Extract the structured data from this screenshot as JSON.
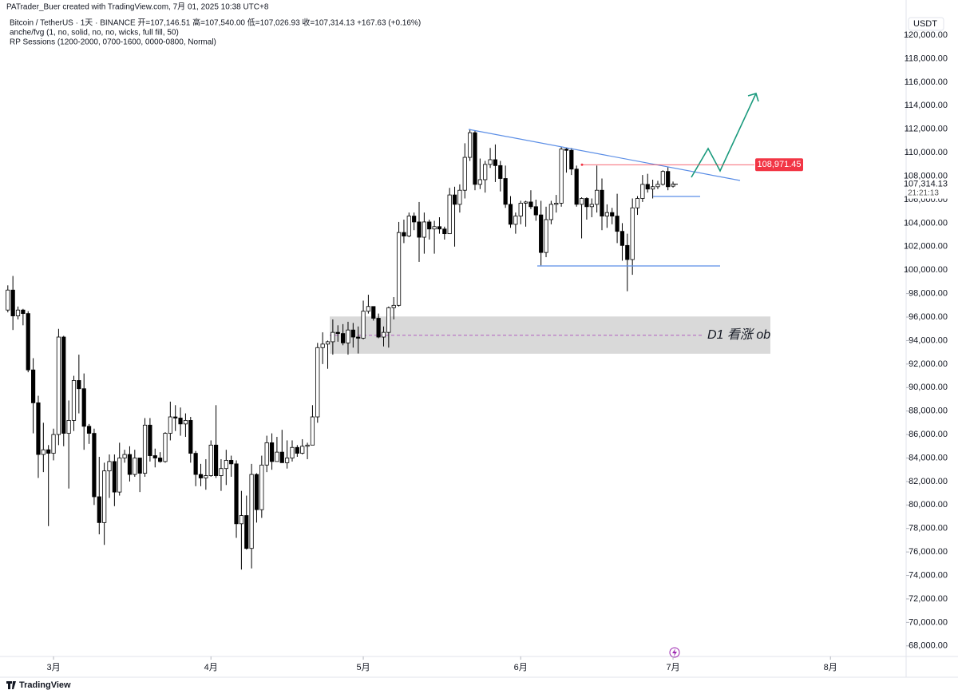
{
  "chart_data": {
    "type": "candlestick",
    "credit": "PATrader_Buer created with TradingView.com, 7月 01, 2025 10:38 UTC+8",
    "legend_lines": [
      "Bitcoin / TetherUS · 1天 · BINANCE  开=107,146.51  高=107,540.00  低=107,026.93  收=107,314.13  +167.63 (+0.16%)",
      "anche/fvg (1, no, solid, no, no, wicks, full fill, 50)",
      "RP Sessions (1200-2000, 0700-1600, 0000-0800, Normal)"
    ],
    "currency": "USDT",
    "brand": "TradingView",
    "open": [
      96600,
      98300,
      96100,
      96600,
      96300,
      91500,
      88700,
      84300,
      84700,
      84400,
      86000,
      94300,
      86100,
      87200,
      90600,
      89900,
      86700,
      86100,
      80700,
      78500,
      82900,
      83700,
      81100,
      84000,
      84300,
      82600,
      84000,
      82700,
      86800,
      84200,
      84000,
      83700,
      86100,
      87500,
      87400,
      86900,
      87200,
      84400,
      82600,
      82300,
      82500,
      85100,
      82500,
      83100,
      83800,
      83500,
      78400,
      79100,
      76300,
      82600,
      79600,
      83400,
      85300,
      83700,
      84500,
      83600,
      84000,
      84900,
      84400,
      85000,
      85100,
      87500,
      93400,
      93700,
      93900,
      94700,
      94600,
      93800,
      94900,
      94300,
      94200,
      96500,
      96900,
      95900,
      94300,
      94700,
      96800,
      97000,
      103200,
      102900,
      104600,
      104100,
      102800,
      104100,
      103500,
      103700,
      103500,
      103100,
      106400,
      105600,
      106800,
      109600,
      111700,
      107300,
      107700,
      109000,
      109400,
      108900,
      107800,
      105600,
      103900,
      104600,
      105700,
      105800,
      105400,
      104700,
      101500,
      104300,
      105600,
      105700,
      110300,
      110200,
      108600,
      105600,
      106100,
      105400,
      105600,
      106800,
      104600,
      104900,
      104600,
      103300,
      102100,
      100900,
      105300,
      106100,
      107300,
      106900,
      107100,
      107300,
      108400,
      107146.51
    ],
    "high": [
      98700,
      99500,
      96900,
      96700,
      96500,
      92500,
      89300,
      87000,
      85100,
      86500,
      95000,
      94400,
      88900,
      91000,
      92800,
      91200,
      86900,
      86500,
      84100,
      83600,
      84300,
      84300,
      85300,
      84700,
      85000,
      84700,
      84000,
      87400,
      87400,
      84800,
      84500,
      86200,
      88800,
      88500,
      88300,
      87800,
      87500,
      84600,
      83500,
      83900,
      85500,
      88500,
      83900,
      84700,
      84200,
      83800,
      81200,
      80800,
      83500,
      82700,
      84200,
      85900,
      86100,
      85800,
      86400,
      85500,
      85500,
      85100,
      85600,
      85300,
      88500,
      93800,
      94700,
      94000,
      95800,
      95300,
      95400,
      95600,
      95500,
      95200,
      97400,
      97900,
      96900,
      96300,
      95200,
      96900,
      97700,
      104100,
      104300,
      104900,
      104900,
      105800,
      104900,
      104300,
      104200,
      104500,
      103700,
      107000,
      107100,
      107300,
      110800,
      112000,
      111900,
      109500,
      109300,
      110400,
      110700,
      109300,
      108900,
      106300,
      104900,
      105900,
      105900,
      106800,
      106000,
      105900,
      105400,
      105900,
      106400,
      110500,
      110400,
      110400,
      108900,
      106200,
      106200,
      106100,
      108900,
      107800,
      105600,
      105300,
      106500,
      104000,
      103100,
      106100,
      106300,
      108100,
      108200,
      107700,
      107600,
      108500,
      108800,
      107540
    ],
    "low": [
      96400,
      94900,
      95800,
      95300,
      91300,
      86100,
      82300,
      82800,
      78200,
      83800,
      85100,
      85000,
      81400,
      86300,
      87800,
      84700,
      85200,
      80000,
      77500,
      76600,
      80600,
      79900,
      80800,
      83600,
      82000,
      82400,
      81100,
      82400,
      83700,
      83200,
      83600,
      83600,
      85500,
      86300,
      85900,
      85800,
      83600,
      81600,
      81600,
      81300,
      82400,
      82300,
      81200,
      81700,
      82400,
      77200,
      74500,
      76200,
      74600,
      78500,
      78900,
      82800,
      83000,
      83700,
      83600,
      83100,
      83700,
      84100,
      84300,
      83900,
      85100,
      87000,
      92000,
      91600,
      92800,
      93900,
      93600,
      92800,
      93400,
      92900,
      94100,
      96300,
      95700,
      94200,
      93500,
      93400,
      95800,
      96900,
      102300,
      102800,
      103400,
      100700,
      101400,
      102600,
      101400,
      103100,
      102600,
      103100,
      102000,
      104900,
      106100,
      109300,
      106800,
      106900,
      106600,
      108700,
      107500,
      106700,
      105300,
      103600,
      103100,
      103900,
      103700,
      105200,
      104200,
      100400,
      101100,
      103900,
      104900,
      105400,
      108300,
      108100,
      105400,
      102700,
      104300,
      104500,
      104900,
      103400,
      103600,
      103900,
      102300,
      100800,
      98200,
      99600,
      104700,
      105800,
      106600,
      106100,
      106900,
      107200,
      106800,
      107026.93
    ],
    "close": [
      98300,
      96100,
      96600,
      96300,
      91500,
      88700,
      84300,
      84700,
      84400,
      86000,
      94300,
      86100,
      87200,
      90600,
      89900,
      86700,
      86100,
      80700,
      78500,
      82900,
      83700,
      81100,
      84000,
      84300,
      82600,
      84000,
      82700,
      86800,
      84200,
      84000,
      83700,
      86100,
      87500,
      87400,
      86900,
      87200,
      84400,
      82600,
      82300,
      82500,
      85100,
      82500,
      83100,
      83800,
      83500,
      78400,
      79100,
      76300,
      82600,
      79600,
      83400,
      85300,
      83700,
      84500,
      83600,
      84000,
      84900,
      84400,
      85000,
      85100,
      87500,
      93400,
      93700,
      93900,
      94700,
      94600,
      93800,
      94900,
      94300,
      94200,
      96500,
      96900,
      95900,
      94300,
      94700,
      96800,
      97000,
      103200,
      102900,
      104600,
      104100,
      102800,
      104100,
      103500,
      103700,
      103500,
      103100,
      106400,
      105600,
      106800,
      109600,
      111700,
      107300,
      107700,
      109000,
      109400,
      108900,
      107800,
      105600,
      103900,
      104600,
      105700,
      105800,
      105400,
      104700,
      101500,
      104300,
      105600,
      105700,
      110300,
      110200,
      108600,
      105600,
      106100,
      105400,
      105600,
      106800,
      104600,
      104900,
      104600,
      103300,
      102100,
      100900,
      105300,
      106100,
      107300,
      106900,
      107100,
      107300,
      108400,
      107100,
      107314.13
    ],
    "up_color": "#ffffff",
    "down_color": "#000000",
    "xlim": [
      -1.54,
      176.9
    ],
    "xticks": [
      {
        "value": 9,
        "label": "3月"
      },
      {
        "value": 40,
        "label": "4月"
      },
      {
        "value": 70,
        "label": "5月"
      },
      {
        "value": 101,
        "label": "6月"
      },
      {
        "value": 131,
        "label": "7月"
      },
      {
        "value": 162,
        "label": "8月"
      }
    ],
    "ylim": [
      67100,
      123000
    ],
    "yticks": [
      {
        "value": 68000,
        "label": "68,000.00"
      },
      {
        "value": 70000,
        "label": "70,000.00"
      },
      {
        "value": 72000,
        "label": "72,000.00"
      },
      {
        "value": 74000,
        "label": "74,000.00"
      },
      {
        "value": 76000,
        "label": "76,000.00"
      },
      {
        "value": 78000,
        "label": "78,000.00"
      },
      {
        "value": 80000,
        "label": "80,000.00"
      },
      {
        "value": 82000,
        "label": "82,000.00"
      },
      {
        "value": 84000,
        "label": "84,000.00"
      },
      {
        "value": 86000,
        "label": "86,000.00"
      },
      {
        "value": 88000,
        "label": "88,000.00"
      },
      {
        "value": 90000,
        "label": "90,000.00"
      },
      {
        "value": 92000,
        "label": "92,000.00"
      },
      {
        "value": 94000,
        "label": "94,000.00"
      },
      {
        "value": 96000,
        "label": "96,000.00"
      },
      {
        "value": 98000,
        "label": "98,000.00"
      },
      {
        "value": 100000,
        "label": "100,000.00"
      },
      {
        "value": 102000,
        "label": "102,000.00"
      },
      {
        "value": 104000,
        "label": "104,000.00"
      },
      {
        "value": 106000,
        "label": "106,000.00"
      },
      {
        "value": 108000,
        "label": "108,000.00"
      },
      {
        "value": 110000,
        "label": "110,000.00"
      },
      {
        "value": 112000,
        "label": "112,000.00"
      },
      {
        "value": 114000,
        "label": "114,000.00"
      },
      {
        "value": 116000,
        "label": "116,000.00"
      },
      {
        "value": 118000,
        "label": "118,000.00"
      },
      {
        "value": 120000,
        "label": "120,000.00"
      }
    ],
    "grid": false,
    "zone": {
      "label": "D1 看涨 ob",
      "ylim": [
        92880,
        96050
      ],
      "mid": 94450
    },
    "price_markers": [
      {
        "value": 108971.45,
        "label": "108,971.45",
        "color": "#f23645"
      },
      {
        "value": 107314.13,
        "label": "107,314.13",
        "color": "#ffffff",
        "countdown": "21:21:13"
      }
    ]
  }
}
